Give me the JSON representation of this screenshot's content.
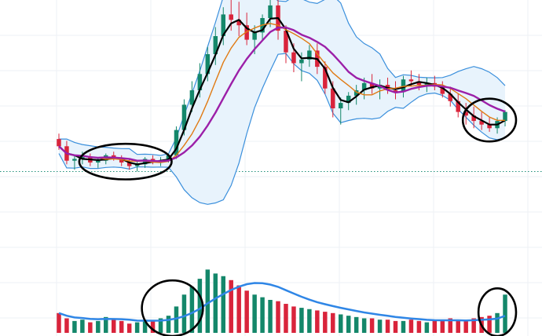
{
  "colors": {
    "background": "#ffffff",
    "grid": "#eef1f4",
    "up": "#14876a",
    "down": "#d9243b",
    "ma_fast": "#000000",
    "ma_mid": "#e07a13",
    "ma_slow": "#9c1fa8",
    "bollinger": "#3a8fdc",
    "bollinger_fill": "#e8f3fc",
    "volume_ma": "#2f86e6",
    "price_line": "#1f8f7a",
    "annotation": "#000000"
  },
  "chart_data": {
    "type": "candlestick",
    "title": "",
    "xlabel": "",
    "ylabel": "",
    "grid": true,
    "legend": "none",
    "price_range": [
      100,
      400
    ],
    "volume_range": [
      0,
      100
    ],
    "last_price_line": 210,
    "series": [
      {
        "name": "",
        "kind": "ohlc",
        "values": [
          [
            246,
            252,
            234,
            238
          ],
          [
            238,
            244,
            218,
            222
          ],
          [
            222,
            228,
            212,
            224
          ],
          [
            224,
            232,
            218,
            226
          ],
          [
            226,
            230,
            216,
            220
          ],
          [
            220,
            226,
            214,
            222
          ],
          [
            222,
            230,
            218,
            228
          ],
          [
            228,
            232,
            222,
            224
          ],
          [
            224,
            228,
            216,
            220
          ],
          [
            220,
            224,
            212,
            216
          ],
          [
            216,
            222,
            210,
            218
          ],
          [
            218,
            226,
            214,
            224
          ],
          [
            224,
            228,
            218,
            220
          ],
          [
            220,
            226,
            216,
            222
          ],
          [
            222,
            230,
            220,
            228
          ],
          [
            228,
            260,
            224,
            256
          ],
          [
            256,
            290,
            250,
            284
          ],
          [
            284,
            310,
            276,
            300
          ],
          [
            300,
            330,
            292,
            318
          ],
          [
            318,
            348,
            310,
            340
          ],
          [
            340,
            370,
            328,
            360
          ],
          [
            360,
            392,
            350,
            384
          ],
          [
            384,
            400,
            366,
            378
          ],
          [
            378,
            398,
            360,
            372
          ],
          [
            372,
            386,
            350,
            356
          ],
          [
            356,
            372,
            340,
            364
          ],
          [
            364,
            384,
            356,
            380
          ],
          [
            380,
            400,
            370,
            394
          ],
          [
            394,
            400,
            356,
            366
          ],
          [
            366,
            372,
            330,
            342
          ],
          [
            342,
            352,
            320,
            330
          ],
          [
            330,
            342,
            310,
            334
          ],
          [
            334,
            350,
            326,
            344
          ],
          [
            344,
            352,
            318,
            326
          ],
          [
            326,
            332,
            296,
            302
          ],
          [
            302,
            310,
            270,
            280
          ],
          [
            280,
            292,
            262,
            286
          ],
          [
            286,
            298,
            278,
            294
          ],
          [
            294,
            306,
            284,
            300
          ],
          [
            300,
            314,
            290,
            308
          ],
          [
            308,
            318,
            296,
            302
          ],
          [
            302,
            312,
            290,
            306
          ],
          [
            306,
            314,
            296,
            300
          ],
          [
            300,
            310,
            290,
            298
          ],
          [
            298,
            316,
            292,
            312
          ],
          [
            312,
            322,
            304,
            310
          ],
          [
            310,
            318,
            300,
            306
          ],
          [
            306,
            314,
            298,
            308
          ],
          [
            308,
            316,
            300,
            304
          ],
          [
            304,
            310,
            292,
            296
          ],
          [
            296,
            304,
            282,
            288
          ],
          [
            288,
            296,
            270,
            276
          ],
          [
            276,
            286,
            262,
            272
          ],
          [
            272,
            282,
            258,
            266
          ],
          [
            266,
            276,
            256,
            262
          ],
          [
            262,
            270,
            254,
            258
          ],
          [
            258,
            270,
            252,
            266
          ],
          [
            266,
            278,
            260,
            276
          ]
        ]
      },
      {
        "name": "",
        "kind": "ma",
        "period": 3
      },
      {
        "name": "",
        "kind": "ma",
        "period": 6
      },
      {
        "name": "",
        "kind": "ma",
        "period": 10
      },
      {
        "name": "",
        "kind": "bollinger",
        "period": 10,
        "k": 2
      },
      {
        "name": "",
        "kind": "volume",
        "values": [
          30,
          22,
          18,
          20,
          16,
          18,
          24,
          20,
          18,
          14,
          16,
          20,
          18,
          22,
          26,
          40,
          58,
          70,
          82,
          96,
          90,
          86,
          80,
          72,
          64,
          58,
          54,
          50,
          48,
          44,
          40,
          38,
          36,
          34,
          32,
          30,
          28,
          26,
          24,
          22,
          22,
          20,
          20,
          18,
          18,
          20,
          18,
          16,
          18,
          20,
          22,
          20,
          18,
          22,
          24,
          26,
          30,
          58
        ]
      },
      {
        "name": "",
        "kind": "volume_ma",
        "period": 10
      }
    ],
    "annotations": [
      {
        "kind": "ellipse",
        "index_range": [
          4,
          13
        ],
        "note": ""
      },
      {
        "kind": "ellipse",
        "index_range": [
          12,
          17
        ],
        "note": ""
      },
      {
        "kind": "ellipse",
        "index_range": [
          53,
          57
        ],
        "note": ""
      },
      {
        "kind": "ellipse",
        "index_range": [
          55,
          57
        ],
        "note": ""
      }
    ]
  }
}
